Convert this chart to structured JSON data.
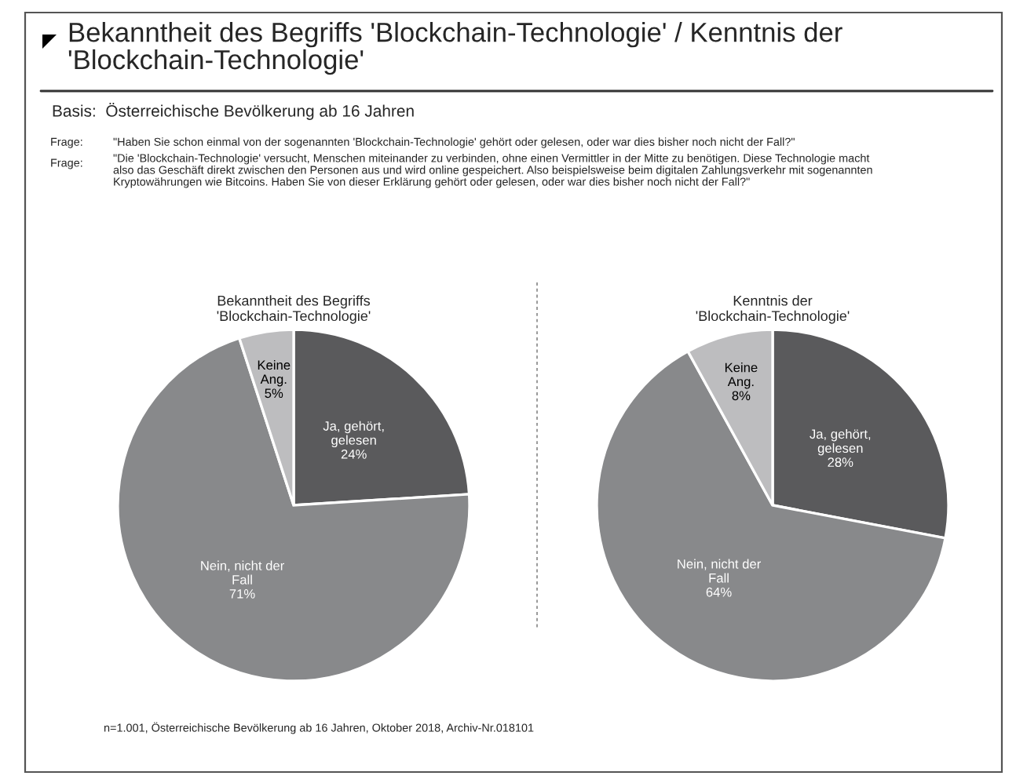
{
  "chart_data": [
    {
      "type": "pie",
      "title": "Bekanntheit des Begriffs\n'Blockchain-Technologie'",
      "categories": [
        "Ja, gehört,\ngelesen",
        "Nein, nicht der\nFall",
        "Keine\nAng."
      ],
      "values": [
        24,
        71,
        5
      ],
      "value_labels": [
        "24%",
        "71%",
        "5%"
      ],
      "colors": [
        "#5a5a5c",
        "#88898b",
        "#bdbdbf"
      ],
      "annotations": [
        "Bekanntheit des Begriffs 'Blockchain-Technologie' / Kenntnis der\n'Blockchain-Technologie'",
        "Basis:  Österreichische Bevölkerung ab 16 Jahren",
        "Frage:",
        "\"Haben Sie schon einmal von der sogenannten 'Blockchain-Technologie' gehört oder gelesen, oder war dies bisher noch nicht der Fall?\"",
        "Frage:",
        "\"Die 'Blockchain-Technologie' versucht, Menschen miteinander zu verbinden, ohne einen Vermittler in der Mitte zu benötigen. Diese Technologie macht\nalso das Geschäft direkt zwischen den Personen aus und wird online gespeichert. Also beispielsweise beim digitalen Zahlungsverkehr mit sogenannten\nKryptowährungen wie Bitcoins. Haben Sie von dieser Erklärung gehört oder gelesen, oder war dies bisher noch nicht der Fall?\"",
        "n=1.001, Österreichische Bevölkerung ab 16 Jahren, Oktober 2018, Archiv-Nr.018101"
      ]
    },
    {
      "type": "pie",
      "title": "Kenntnis der\n'Blockchain-Technologie'",
      "categories": [
        "Ja, gehört,\ngelesen",
        "Nein, nicht der\nFall",
        "Keine\nAng."
      ],
      "values": [
        28,
        64,
        8
      ],
      "value_labels": [
        "28%",
        "64%",
        "8%"
      ],
      "colors": [
        "#5a5a5c",
        "#88898b",
        "#bdbdbf"
      ]
    }
  ]
}
